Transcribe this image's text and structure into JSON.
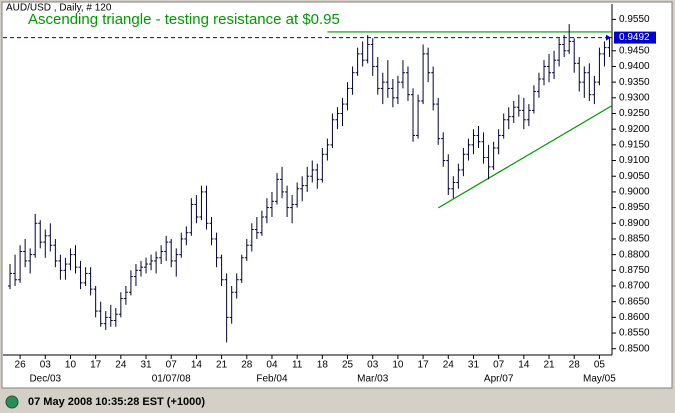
{
  "chart_data": {
    "type": "ohlc",
    "header": "AUD/USD , Daily, # 120",
    "title": "Ascending triangle - testing resistance at $0.95",
    "status": "07 May 2008 10:35:28 EST (+1000)",
    "color": "#000033",
    "ylim": [
      0.848,
      0.958
    ],
    "yticks": [
      {
        "value": 0.955,
        "label": "0.9550"
      },
      {
        "value": 0.945,
        "label": "0.9450"
      },
      {
        "value": 0.94,
        "label": "0.9400"
      },
      {
        "value": 0.935,
        "label": "0.9350"
      },
      {
        "value": 0.93,
        "label": "0.9300"
      },
      {
        "value": 0.925,
        "label": "0.9250"
      },
      {
        "value": 0.92,
        "label": "0.9200"
      },
      {
        "value": 0.915,
        "label": "0.9150"
      },
      {
        "value": 0.91,
        "label": "0.9100"
      },
      {
        "value": 0.905,
        "label": "0.9050"
      },
      {
        "value": 0.9,
        "label": "0.9000"
      },
      {
        "value": 0.895,
        "label": "0.8950"
      },
      {
        "value": 0.89,
        "label": "0.8900"
      },
      {
        "value": 0.885,
        "label": "0.8850"
      },
      {
        "value": 0.88,
        "label": "0.8800"
      },
      {
        "value": 0.875,
        "label": "0.8750"
      },
      {
        "value": 0.87,
        "label": "0.8700"
      },
      {
        "value": 0.865,
        "label": "0.8650"
      },
      {
        "value": 0.86,
        "label": "0.8600"
      },
      {
        "value": 0.855,
        "label": "0.8550"
      },
      {
        "value": 0.85,
        "label": "0.8500"
      }
    ],
    "last_price": {
      "value": 0.9492,
      "label": "0.9492",
      "color": "#0000cc"
    },
    "trend_lines": [
      {
        "x": [
          63,
          120
        ],
        "y": [
          0.951,
          0.951
        ],
        "color": "#009900"
      },
      {
        "x": [
          85,
          120
        ],
        "y": [
          0.8949,
          0.9275
        ],
        "color": "#009900"
      }
    ],
    "categories": [
      null,
      null,
      "26",
      null,
      null,
      null,
      null,
      "03",
      null,
      null,
      null,
      null,
      "10",
      null,
      null,
      null,
      null,
      "17",
      null,
      null,
      null,
      null,
      "24",
      null,
      null,
      null,
      null,
      "31",
      null,
      null,
      null,
      null,
      "07",
      null,
      null,
      null,
      null,
      "14",
      null,
      null,
      null,
      null,
      "21",
      null,
      null,
      null,
      null,
      "28",
      null,
      null,
      null,
      null,
      "04",
      null,
      null,
      null,
      null,
      "11",
      null,
      null,
      null,
      null,
      "18",
      null,
      null,
      null,
      null,
      "25",
      null,
      null,
      null,
      null,
      "03",
      null,
      null,
      null,
      null,
      "10",
      null,
      null,
      null,
      null,
      "17",
      null,
      null,
      null,
      null,
      "24",
      null,
      null,
      null,
      null,
      "31",
      null,
      null,
      null,
      null,
      "07",
      null,
      null,
      null,
      null,
      "14",
      null,
      null,
      null,
      null,
      "21",
      null,
      null,
      null,
      null,
      "28",
      null,
      null,
      null,
      null,
      "05",
      null,
      null
    ],
    "group_labels": [
      null,
      null,
      null,
      null,
      null,
      null,
      null,
      "Dec/03",
      null,
      null,
      null,
      null,
      null,
      null,
      null,
      null,
      null,
      null,
      null,
      null,
      null,
      null,
      null,
      null,
      null,
      null,
      null,
      null,
      null,
      null,
      null,
      null,
      "01/07/08",
      null,
      null,
      null,
      null,
      null,
      null,
      null,
      null,
      null,
      null,
      null,
      null,
      null,
      null,
      null,
      null,
      null,
      null,
      null,
      "Feb/04",
      null,
      null,
      null,
      null,
      null,
      null,
      null,
      null,
      null,
      null,
      null,
      null,
      null,
      null,
      null,
      null,
      null,
      null,
      null,
      "Mar/03",
      null,
      null,
      null,
      null,
      null,
      null,
      null,
      null,
      null,
      null,
      null,
      null,
      null,
      null,
      null,
      null,
      null,
      null,
      null,
      null,
      null,
      null,
      null,
      null,
      "Apr/07",
      null,
      null,
      null,
      null,
      null,
      null,
      null,
      null,
      null,
      null,
      null,
      null,
      null,
      null,
      null,
      null,
      null,
      null,
      null,
      "May/05",
      null,
      null
    ],
    "bars": [
      [
        0.87,
        0.877,
        0.869,
        0.874
      ],
      [
        0.874,
        0.88,
        0.87,
        0.872
      ],
      [
        0.872,
        0.883,
        0.871,
        0.881
      ],
      [
        0.881,
        0.885,
        0.876,
        0.878
      ],
      [
        0.878,
        0.882,
        0.874,
        0.88
      ],
      [
        0.88,
        0.893,
        0.879,
        0.89
      ],
      [
        0.89,
        0.891,
        0.882,
        0.884
      ],
      [
        0.884,
        0.888,
        0.879,
        0.886
      ],
      [
        0.886,
        0.89,
        0.881,
        0.883
      ],
      [
        0.883,
        0.885,
        0.876,
        0.878
      ],
      [
        0.878,
        0.88,
        0.872,
        0.875
      ],
      [
        0.875,
        0.879,
        0.872,
        0.877
      ],
      [
        0.877,
        0.882,
        0.875,
        0.88
      ],
      [
        0.88,
        0.883,
        0.874,
        0.876
      ],
      [
        0.876,
        0.878,
        0.869,
        0.871
      ],
      [
        0.871,
        0.876,
        0.87,
        0.874
      ],
      [
        0.874,
        0.876,
        0.867,
        0.869
      ],
      [
        0.869,
        0.87,
        0.86,
        0.862
      ],
      [
        0.862,
        0.865,
        0.857,
        0.858
      ],
      [
        0.858,
        0.862,
        0.856,
        0.86
      ],
      [
        0.86,
        0.864,
        0.857,
        0.859
      ],
      [
        0.859,
        0.863,
        0.857,
        0.861
      ],
      [
        0.861,
        0.868,
        0.86,
        0.866
      ],
      [
        0.866,
        0.87,
        0.864,
        0.868
      ],
      [
        0.868,
        0.875,
        0.867,
        0.873
      ],
      [
        0.873,
        0.877,
        0.87,
        0.875
      ],
      [
        0.875,
        0.878,
        0.873,
        0.876
      ],
      [
        0.876,
        0.879,
        0.874,
        0.877
      ],
      [
        0.877,
        0.88,
        0.875,
        0.878
      ],
      [
        0.878,
        0.881,
        0.874,
        0.879
      ],
      [
        0.879,
        0.883,
        0.877,
        0.881
      ],
      [
        0.881,
        0.886,
        0.878,
        0.884
      ],
      [
        0.884,
        0.885,
        0.876,
        0.878
      ],
      [
        0.878,
        0.882,
        0.873,
        0.88
      ],
      [
        0.88,
        0.887,
        0.879,
        0.885
      ],
      [
        0.885,
        0.889,
        0.883,
        0.887
      ],
      [
        0.887,
        0.898,
        0.886,
        0.896
      ],
      [
        0.896,
        0.899,
        0.89,
        0.892
      ],
      [
        0.892,
        0.902,
        0.891,
        0.9
      ],
      [
        0.9,
        0.902,
        0.888,
        0.89
      ],
      [
        0.89,
        0.892,
        0.883,
        0.885
      ],
      [
        0.885,
        0.887,
        0.876,
        0.879
      ],
      [
        0.879,
        0.88,
        0.87,
        0.872
      ],
      [
        0.872,
        0.874,
        0.852,
        0.86
      ],
      [
        0.86,
        0.87,
        0.858,
        0.868
      ],
      [
        0.868,
        0.874,
        0.866,
        0.872
      ],
      [
        0.872,
        0.88,
        0.871,
        0.879
      ],
      [
        0.879,
        0.885,
        0.878,
        0.883
      ],
      [
        0.883,
        0.89,
        0.881,
        0.888
      ],
      [
        0.888,
        0.892,
        0.885,
        0.887
      ],
      [
        0.887,
        0.894,
        0.886,
        0.892
      ],
      [
        0.892,
        0.898,
        0.89,
        0.895
      ],
      [
        0.895,
        0.9,
        0.892,
        0.897
      ],
      [
        0.897,
        0.906,
        0.896,
        0.904
      ],
      [
        0.904,
        0.908,
        0.898,
        0.9
      ],
      [
        0.9,
        0.902,
        0.892,
        0.895
      ],
      [
        0.895,
        0.899,
        0.89,
        0.896
      ],
      [
        0.896,
        0.903,
        0.895,
        0.901
      ],
      [
        0.901,
        0.905,
        0.897,
        0.902
      ],
      [
        0.902,
        0.908,
        0.9,
        0.905
      ],
      [
        0.905,
        0.91,
        0.903,
        0.907
      ],
      [
        0.907,
        0.909,
        0.901,
        0.904
      ],
      [
        0.904,
        0.914,
        0.903,
        0.912
      ],
      [
        0.912,
        0.917,
        0.91,
        0.915
      ],
      [
        0.915,
        0.925,
        0.914,
        0.923
      ],
      [
        0.923,
        0.927,
        0.92,
        0.925
      ],
      [
        0.925,
        0.93,
        0.921,
        0.928
      ],
      [
        0.928,
        0.935,
        0.926,
        0.933
      ],
      [
        0.933,
        0.94,
        0.931,
        0.938
      ],
      [
        0.938,
        0.946,
        0.937,
        0.944
      ],
      [
        0.944,
        0.948,
        0.94,
        0.942
      ],
      [
        0.942,
        0.95,
        0.941,
        0.947
      ],
      [
        0.947,
        0.949,
        0.937,
        0.94
      ],
      [
        0.94,
        0.943,
        0.931,
        0.933
      ],
      [
        0.933,
        0.938,
        0.928,
        0.935
      ],
      [
        0.935,
        0.942,
        0.93,
        0.933
      ],
      [
        0.933,
        0.936,
        0.927,
        0.93
      ],
      [
        0.93,
        0.937,
        0.928,
        0.935
      ],
      [
        0.935,
        0.942,
        0.933,
        0.938
      ],
      [
        0.938,
        0.94,
        0.929,
        0.931
      ],
      [
        0.931,
        0.933,
        0.916,
        0.918
      ],
      [
        0.918,
        0.931,
        0.917,
        0.929
      ],
      [
        0.929,
        0.947,
        0.928,
        0.944
      ],
      [
        0.944,
        0.946,
        0.935,
        0.938
      ],
      [
        0.938,
        0.94,
        0.926,
        0.928
      ],
      [
        0.928,
        0.93,
        0.915,
        0.917
      ],
      [
        0.917,
        0.919,
        0.908,
        0.91
      ],
      [
        0.91,
        0.912,
        0.899,
        0.901
      ],
      [
        0.901,
        0.905,
        0.898,
        0.903
      ],
      [
        0.903,
        0.909,
        0.901,
        0.907
      ],
      [
        0.907,
        0.914,
        0.905,
        0.912
      ],
      [
        0.912,
        0.917,
        0.91,
        0.915
      ],
      [
        0.915,
        0.92,
        0.912,
        0.918
      ],
      [
        0.918,
        0.921,
        0.914,
        0.916
      ],
      [
        0.916,
        0.919,
        0.909,
        0.911
      ],
      [
        0.911,
        0.915,
        0.904,
        0.908
      ],
      [
        0.908,
        0.916,
        0.907,
        0.914
      ],
      [
        0.914,
        0.92,
        0.912,
        0.918
      ],
      [
        0.918,
        0.925,
        0.917,
        0.923
      ],
      [
        0.923,
        0.927,
        0.92,
        0.924
      ],
      [
        0.924,
        0.929,
        0.922,
        0.927
      ],
      [
        0.927,
        0.931,
        0.924,
        0.926
      ],
      [
        0.926,
        0.93,
        0.92,
        0.923
      ],
      [
        0.923,
        0.928,
        0.921,
        0.926
      ],
      [
        0.926,
        0.934,
        0.925,
        0.932
      ],
      [
        0.932,
        0.938,
        0.93,
        0.936
      ],
      [
        0.936,
        0.942,
        0.934,
        0.94
      ],
      [
        0.94,
        0.944,
        0.935,
        0.938
      ],
      [
        0.938,
        0.945,
        0.936,
        0.942
      ],
      [
        0.942,
        0.949,
        0.94,
        0.947
      ],
      [
        0.947,
        0.95,
        0.943,
        0.945
      ],
      [
        0.945,
        0.9535,
        0.944,
        0.948
      ],
      [
        0.948,
        0.949,
        0.938,
        0.941
      ],
      [
        0.941,
        0.943,
        0.932,
        0.935
      ],
      [
        0.935,
        0.94,
        0.93,
        0.938
      ],
      [
        0.938,
        0.941,
        0.929,
        0.931
      ],
      [
        0.931,
        0.937,
        0.928,
        0.935
      ],
      [
        0.935,
        0.946,
        0.934,
        0.944
      ],
      [
        0.944,
        0.948,
        0.94,
        0.946
      ],
      [
        0.946,
        0.949,
        0.943,
        0.9492
      ]
    ]
  }
}
